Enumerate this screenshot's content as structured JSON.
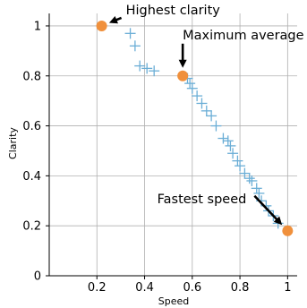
{
  "chart_data": {
    "type": "scatter",
    "xlabel": "Speed",
    "ylabel": "Clarity",
    "xlim": [
      0,
      1.04
    ],
    "ylim": [
      0,
      1.05
    ],
    "grid": true,
    "xticks": [
      0.2,
      0.4,
      0.6,
      0.8,
      1
    ],
    "xtick_labels": [
      "0.2",
      "0.4",
      "0.6",
      "0.8",
      "1"
    ],
    "yticks": [
      0,
      0.2,
      0.4,
      0.6,
      0.8,
      1
    ],
    "ytick_labels": [
      "0",
      "0.2",
      "0.4",
      "0.6",
      "0.8",
      "1"
    ],
    "colors": {
      "points": "#6baed6",
      "highlight": "#f0903c"
    },
    "series": [
      {
        "marker": "plus",
        "points": [
          {
            "x": 0.34,
            "y": 0.97
          },
          {
            "x": 0.36,
            "y": 0.92
          },
          {
            "x": 0.38,
            "y": 0.84
          },
          {
            "x": 0.41,
            "y": 0.83
          },
          {
            "x": 0.44,
            "y": 0.82
          },
          {
            "x": 0.58,
            "y": 0.79
          },
          {
            "x": 0.59,
            "y": 0.77
          },
          {
            "x": 0.6,
            "y": 0.75
          },
          {
            "x": 0.62,
            "y": 0.72
          },
          {
            "x": 0.64,
            "y": 0.69
          },
          {
            "x": 0.66,
            "y": 0.66
          },
          {
            "x": 0.68,
            "y": 0.64
          },
          {
            "x": 0.7,
            "y": 0.6
          },
          {
            "x": 0.73,
            "y": 0.55
          },
          {
            "x": 0.75,
            "y": 0.54
          },
          {
            "x": 0.76,
            "y": 0.52
          },
          {
            "x": 0.77,
            "y": 0.49
          },
          {
            "x": 0.79,
            "y": 0.46
          },
          {
            "x": 0.8,
            "y": 0.44
          },
          {
            "x": 0.82,
            "y": 0.41
          },
          {
            "x": 0.84,
            "y": 0.39
          },
          {
            "x": 0.85,
            "y": 0.38
          },
          {
            "x": 0.87,
            "y": 0.35
          },
          {
            "x": 0.88,
            "y": 0.33
          },
          {
            "x": 0.89,
            "y": 0.3
          },
          {
            "x": 0.91,
            "y": 0.28
          },
          {
            "x": 0.92,
            "y": 0.26
          },
          {
            "x": 0.94,
            "y": 0.24
          },
          {
            "x": 0.96,
            "y": 0.21
          }
        ]
      },
      {
        "marker": "circle",
        "points": [
          {
            "x": 0.22,
            "y": 1.0
          },
          {
            "x": 0.56,
            "y": 0.8
          },
          {
            "x": 1.0,
            "y": 0.18
          }
        ]
      }
    ],
    "annotations": [
      {
        "text": "Highest clarity",
        "x": 0.22,
        "y": 1.0
      },
      {
        "text": "Maximum average",
        "x": 0.56,
        "y": 0.8
      },
      {
        "text": "Fastest speed",
        "x": 1.0,
        "y": 0.18
      }
    ]
  }
}
